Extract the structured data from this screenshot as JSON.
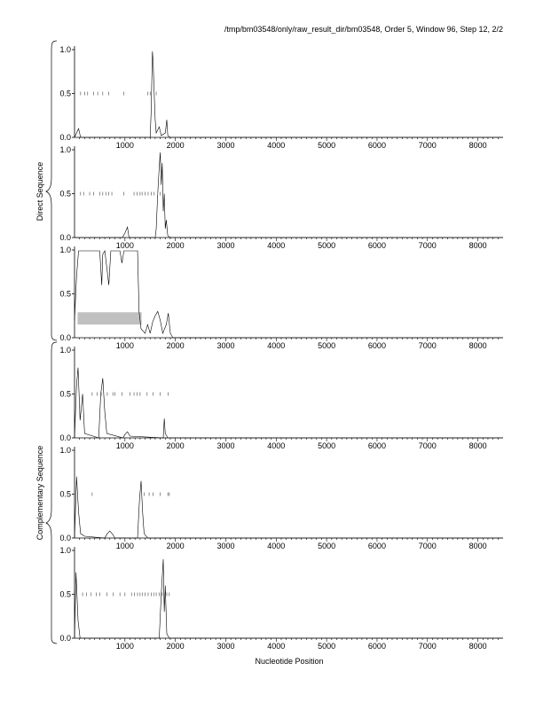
{
  "header": "/tmp/bm03548/only/raw_result_dir/bm03548, Order 5, Window 96, Step 12, 2/2",
  "xlabel": "Nucleotide Position",
  "group_labels": [
    "Direct Sequence",
    "Complementary Sequence"
  ],
  "chart_data": {
    "type": "line",
    "title": "/tmp/bm03548/only/raw_result_dir/bm03548, Order 5, Window 96, Step 12, 2/2",
    "xlabel": "Nucleotide Position",
    "xlim": [
      0,
      8500
    ],
    "ylim": [
      0,
      1.0
    ],
    "x_ticks": [
      1000,
      2000,
      3000,
      4000,
      5000,
      6000,
      7000,
      8000
    ],
    "y_ticks": [
      0.0,
      0.5,
      1.0
    ],
    "panels": [
      {
        "group": "Direct Sequence",
        "line": [
          [
            0,
            0.0
          ],
          [
            80,
            0.1
          ],
          [
            120,
            0.0
          ],
          [
            1500,
            0.0
          ],
          [
            1520,
            0.3
          ],
          [
            1545,
            0.98
          ],
          [
            1560,
            0.85
          ],
          [
            1580,
            0.5
          ],
          [
            1600,
            0.2
          ],
          [
            1620,
            0.05
          ],
          [
            1680,
            0.12
          ],
          [
            1720,
            0.02
          ],
          [
            1800,
            0.05
          ],
          [
            1830,
            0.2
          ],
          [
            1850,
            0.02
          ],
          [
            1900,
            0.0
          ],
          [
            8500,
            0.0
          ]
        ],
        "marks": [
          120,
          200,
          260,
          380,
          460,
          560,
          680,
          980,
          1450,
          1500,
          1620
        ]
      },
      {
        "group": "Direct Sequence",
        "line": [
          [
            0,
            0.0
          ],
          [
            950,
            0.0
          ],
          [
            1000,
            0.05
          ],
          [
            1050,
            0.12
          ],
          [
            1080,
            0.0
          ],
          [
            1600,
            0.0
          ],
          [
            1620,
            0.1
          ],
          [
            1650,
            0.5
          ],
          [
            1680,
            0.8
          ],
          [
            1700,
            0.97
          ],
          [
            1720,
            0.6
          ],
          [
            1740,
            0.85
          ],
          [
            1760,
            0.3
          ],
          [
            1780,
            0.5
          ],
          [
            1800,
            0.1
          ],
          [
            1820,
            0.2
          ],
          [
            1850,
            0.02
          ],
          [
            1900,
            0.0
          ],
          [
            8500,
            0.0
          ]
        ],
        "marks": [
          120,
          180,
          300,
          380,
          500,
          560,
          620,
          680,
          740,
          980,
          1180,
          1240,
          1300,
          1340,
          1400,
          1460,
          1520,
          1580,
          1650,
          1700
        ]
      },
      {
        "group": "Direct Sequence",
        "line": [
          [
            0,
            0.2
          ],
          [
            40,
            0.7
          ],
          [
            80,
            0.99
          ],
          [
            500,
            0.99
          ],
          [
            540,
            0.6
          ],
          [
            560,
            0.95
          ],
          [
            600,
            0.99
          ],
          [
            640,
            0.8
          ],
          [
            680,
            0.6
          ],
          [
            720,
            0.99
          ],
          [
            900,
            0.99
          ],
          [
            940,
            0.85
          ],
          [
            980,
            0.99
          ],
          [
            1250,
            0.99
          ],
          [
            1280,
            0.3
          ],
          [
            1320,
            0.1
          ],
          [
            1400,
            0.05
          ],
          [
            1450,
            0.15
          ],
          [
            1500,
            0.05
          ],
          [
            1550,
            0.18
          ],
          [
            1600,
            0.25
          ],
          [
            1650,
            0.3
          ],
          [
            1700,
            0.2
          ],
          [
            1750,
            0.05
          ],
          [
            1820,
            0.15
          ],
          [
            1860,
            0.28
          ],
          [
            1900,
            0.05
          ],
          [
            1950,
            0.0
          ],
          [
            8500,
            0.0
          ]
        ],
        "marks": [],
        "band": {
          "x": [
            60,
            1330
          ],
          "y": [
            0.15,
            0.29
          ]
        }
      },
      {
        "group": "Complementary Sequence",
        "line": [
          [
            0,
            0.0
          ],
          [
            40,
            0.6
          ],
          [
            70,
            0.8
          ],
          [
            110,
            0.2
          ],
          [
            160,
            0.5
          ],
          [
            200,
            0.05
          ],
          [
            480,
            0.0
          ],
          [
            520,
            0.5
          ],
          [
            560,
            0.68
          ],
          [
            600,
            0.3
          ],
          [
            640,
            0.05
          ],
          [
            960,
            0.0
          ],
          [
            1000,
            0.04
          ],
          [
            1050,
            0.07
          ],
          [
            1100,
            0.02
          ],
          [
            1760,
            0.0
          ],
          [
            1780,
            0.22
          ],
          [
            1800,
            0.05
          ],
          [
            1850,
            0.0
          ],
          [
            8500,
            0.0
          ]
        ],
        "marks": [
          350,
          450,
          530,
          650,
          760,
          800,
          940,
          1100,
          1180,
          1240,
          1300,
          1440,
          1560,
          1700,
          1860
        ]
      },
      {
        "group": "Complementary Sequence",
        "line": [
          [
            0,
            0.0
          ],
          [
            40,
            0.7
          ],
          [
            80,
            0.3
          ],
          [
            120,
            0.05
          ],
          [
            200,
            0.02
          ],
          [
            600,
            0.0
          ],
          [
            650,
            0.05
          ],
          [
            700,
            0.08
          ],
          [
            760,
            0.04
          ],
          [
            800,
            0.0
          ],
          [
            1250,
            0.0
          ],
          [
            1290,
            0.45
          ],
          [
            1320,
            0.65
          ],
          [
            1350,
            0.3
          ],
          [
            1380,
            0.05
          ],
          [
            1450,
            0.0
          ],
          [
            8500,
            0.0
          ]
        ],
        "marks": [
          350,
          1380,
          1480,
          1560,
          1700,
          1850,
          1880
        ]
      },
      {
        "group": "Complementary Sequence",
        "line": [
          [
            0,
            0.0
          ],
          [
            30,
            0.75
          ],
          [
            70,
            0.2
          ],
          [
            110,
            0.0
          ],
          [
            1680,
            0.0
          ],
          [
            1720,
            0.5
          ],
          [
            1760,
            0.9
          ],
          [
            1780,
            0.3
          ],
          [
            1800,
            0.6
          ],
          [
            1830,
            0.05
          ],
          [
            1880,
            0.0
          ],
          [
            8500,
            0.0
          ]
        ],
        "marks": [
          160,
          240,
          330,
          430,
          500,
          640,
          770,
          900,
          1000,
          1130,
          1190,
          1250,
          1300,
          1350,
          1400,
          1460,
          1520,
          1570,
          1620,
          1680,
          1740,
          1830,
          1880
        ]
      }
    ]
  }
}
